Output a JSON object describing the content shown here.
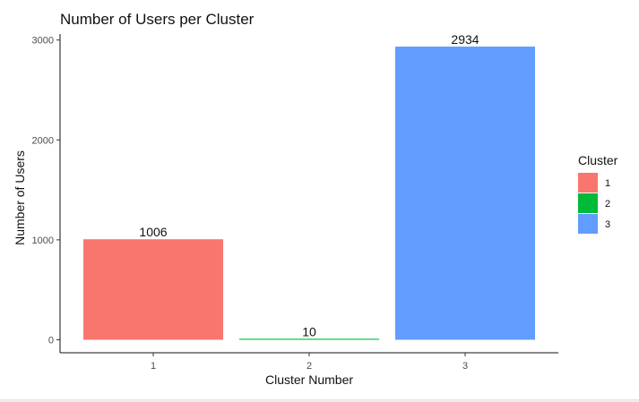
{
  "chart_data": {
    "type": "bar",
    "title": "Number of Users per Cluster",
    "xlabel": "Cluster Number",
    "ylabel": "Number of Users",
    "categories": [
      "1",
      "2",
      "3"
    ],
    "values": [
      1006,
      10,
      2934
    ],
    "data_labels": [
      "1006",
      "10",
      "2934"
    ],
    "y_ticks": [
      0,
      1000,
      2000,
      3000
    ],
    "y_tick_labels": [
      "0",
      "1000",
      "2000",
      "3000"
    ],
    "ylim": [
      -130,
      3060
    ],
    "grid": false,
    "legend": {
      "title": "Cluster",
      "placement": "right",
      "entries": [
        "1",
        "2",
        "3"
      ]
    },
    "colors": [
      "#F8766D",
      "#00BA38",
      "#619CFF"
    ]
  }
}
